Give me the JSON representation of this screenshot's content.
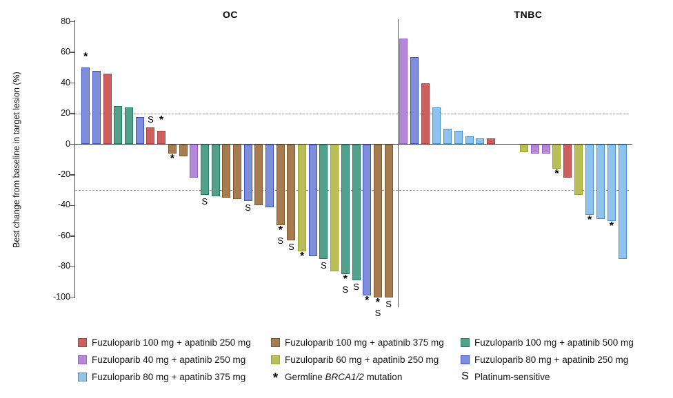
{
  "chart_data": {
    "type": "bar",
    "ylabel": "Best change from baseline in target lesion (%)",
    "ylim": [
      -100,
      80
    ],
    "yticks": [
      80,
      60,
      40,
      20,
      0,
      -20,
      -40,
      -60,
      -80,
      -100
    ],
    "reference_lines": [
      20,
      -30
    ],
    "grid": false,
    "flag_symbols": {
      "brca": "*",
      "plat": "S"
    },
    "panels": [
      {
        "title": "OC",
        "bars": [
          {
            "group": "fuzu80_apa250",
            "value": 50,
            "flags": [
              "brca"
            ]
          },
          {
            "group": "fuzu80_apa250",
            "value": 48
          },
          {
            "group": "fuzu100_apa250",
            "value": 46
          },
          {
            "group": "fuzu100_apa500",
            "value": 25
          },
          {
            "group": "fuzu100_apa500",
            "value": 24
          },
          {
            "group": "fuzu80_apa250",
            "value": 18
          },
          {
            "group": "fuzu100_apa250",
            "value": 11,
            "flags": [
              "plat"
            ]
          },
          {
            "group": "fuzu100_apa250",
            "value": 9,
            "flags": [
              "brca"
            ]
          },
          {
            "group": "fuzu100_apa375",
            "value": -6,
            "flags": [
              "brca"
            ]
          },
          {
            "group": "fuzu100_apa375",
            "value": -8
          },
          {
            "group": "fuzu40_apa250",
            "value": -22
          },
          {
            "group": "fuzu100_apa500",
            "value": -33,
            "flags": [
              "plat"
            ]
          },
          {
            "group": "fuzu100_apa500",
            "value": -34
          },
          {
            "group": "fuzu100_apa375",
            "value": -35
          },
          {
            "group": "fuzu100_apa375",
            "value": -36
          },
          {
            "group": "fuzu80_apa250",
            "value": -37,
            "flags": [
              "plat"
            ]
          },
          {
            "group": "fuzu100_apa375",
            "value": -40
          },
          {
            "group": "fuzu80_apa250",
            "value": -41
          },
          {
            "group": "fuzu100_apa375",
            "value": -53,
            "flags": [
              "brca",
              "plat"
            ]
          },
          {
            "group": "fuzu100_apa375",
            "value": -63,
            "flags": [
              "plat"
            ]
          },
          {
            "group": "fuzu60_apa250",
            "value": -70,
            "flags": [
              "brca"
            ]
          },
          {
            "group": "fuzu80_apa250",
            "value": -73
          },
          {
            "group": "fuzu100_apa500",
            "value": -75,
            "flags": [
              "plat"
            ]
          },
          {
            "group": "fuzu60_apa250",
            "value": -83
          },
          {
            "group": "fuzu100_apa500",
            "value": -85,
            "flags": [
              "brca",
              "plat"
            ]
          },
          {
            "group": "fuzu100_apa500",
            "value": -89,
            "flags": [
              "plat"
            ]
          },
          {
            "group": "fuzu80_apa250",
            "value": -99,
            "flags": [
              "brca"
            ]
          },
          {
            "group": "fuzu100_apa375",
            "value": -100,
            "flags": [
              "brca",
              "plat"
            ]
          },
          {
            "group": "fuzu100_apa375",
            "value": -100,
            "flags": [
              "plat"
            ]
          }
        ]
      },
      {
        "title": "TNBC",
        "bars": [
          {
            "group": "fuzu40_apa250",
            "value": 69
          },
          {
            "group": "fuzu80_apa250",
            "value": 57
          },
          {
            "group": "fuzu100_apa250",
            "value": 40
          },
          {
            "group": "fuzu80_apa375",
            "value": 24
          },
          {
            "group": "fuzu80_apa375",
            "value": 10
          },
          {
            "group": "fuzu80_apa375",
            "value": 9
          },
          {
            "group": "fuzu80_apa375",
            "value": 5
          },
          {
            "group": "fuzu80_apa375",
            "value": 4
          },
          {
            "group": "fuzu100_apa250",
            "value": 4
          },
          {
            "group": "fuzu60_apa250",
            "value": -5,
            "gap_before": 2
          },
          {
            "group": "fuzu40_apa250",
            "value": -6
          },
          {
            "group": "fuzu40_apa250",
            "value": -6
          },
          {
            "group": "fuzu60_apa250",
            "value": -16,
            "flags": [
              "brca"
            ]
          },
          {
            "group": "fuzu100_apa250",
            "value": -22
          },
          {
            "group": "fuzu60_apa250",
            "value": -33
          },
          {
            "group": "fuzu80_apa375",
            "value": -46,
            "flags": [
              "brca"
            ]
          },
          {
            "group": "fuzu80_apa375",
            "value": -49
          },
          {
            "group": "fuzu80_apa375",
            "value": -50,
            "flags": [
              "brca"
            ]
          },
          {
            "group": "fuzu80_apa375",
            "value": -75
          }
        ]
      }
    ],
    "colors": {
      "fuzu100_apa250": {
        "fill": "#cd5f5f",
        "border": "#b14141"
      },
      "fuzu100_apa375": {
        "fill": "#a67c50",
        "border": "#7e5a29"
      },
      "fuzu100_apa500": {
        "fill": "#53a08c",
        "border": "#1f7c65"
      },
      "fuzu40_apa250": {
        "fill": "#b388d6",
        "border": "#9a5ec6"
      },
      "fuzu60_apa250": {
        "fill": "#babe59",
        "border": "#9aa52c"
      },
      "fuzu80_apa250": {
        "fill": "#7e8ed9",
        "border": "#3c50c4"
      },
      "fuzu80_apa375": {
        "fill": "#8fc3ec",
        "border": "#4292dc"
      }
    },
    "legend": {
      "rows": [
        [
          {
            "type": "swatch",
            "key": "fuzu100_apa250",
            "label": "Fuzuloparib 100 mg + apatinib 250 mg"
          },
          {
            "type": "swatch",
            "key": "fuzu100_apa375",
            "label": "Fuzuloparib 100 mg + apatinib 375 mg"
          },
          {
            "type": "swatch",
            "key": "fuzu100_apa500",
            "label": "Fuzuloparib 100 mg + apatinib 500 mg"
          }
        ],
        [
          {
            "type": "swatch",
            "key": "fuzu40_apa250",
            "label": "Fuzuloparib 40 mg + apatinib 250 mg"
          },
          {
            "type": "swatch",
            "key": "fuzu60_apa250",
            "label": "Fuzuloparib 60 mg + apatinib 250 mg"
          },
          {
            "type": "swatch",
            "key": "fuzu80_apa250",
            "label": "Fuzuloparib 80 mg + apatinib 250 mg"
          }
        ],
        [
          {
            "type": "swatch",
            "key": "fuzu80_apa375",
            "label": "Fuzuloparib 80 mg + apatinib 375 mg"
          },
          {
            "type": "symbol",
            "symbol": "*",
            "label": "Germline BRCA1/2 mutation",
            "italic_part": "BRCA1/2"
          },
          {
            "type": "symbol",
            "symbol": "S",
            "label": "Platinum-sensitive"
          }
        ]
      ]
    }
  }
}
